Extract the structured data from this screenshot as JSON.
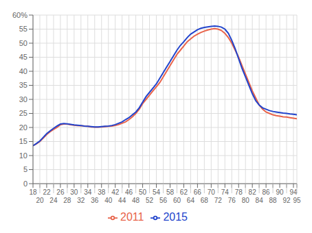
{
  "chart_data": {
    "type": "line",
    "x": [
      18,
      19,
      20,
      21,
      22,
      23,
      24,
      25,
      26,
      27,
      28,
      29,
      30,
      31,
      32,
      33,
      34,
      35,
      36,
      37,
      38,
      39,
      40,
      41,
      42,
      43,
      44,
      45,
      46,
      47,
      48,
      49,
      50,
      51,
      52,
      53,
      54,
      55,
      56,
      57,
      58,
      59,
      60,
      61,
      62,
      63,
      64,
      65,
      66,
      67,
      68,
      69,
      70,
      71,
      72,
      73,
      74,
      75,
      76,
      77,
      78,
      79,
      80,
      81,
      82,
      83,
      84,
      85,
      86,
      87,
      88,
      89,
      90,
      91,
      92,
      93,
      94,
      95
    ],
    "series": [
      {
        "name": "2011",
        "color": "#e8634a",
        "values": [
          13.5,
          14.2,
          15.0,
          16.2,
          17.5,
          18.5,
          19.3,
          20.0,
          21.0,
          21.2,
          21.2,
          21.0,
          20.8,
          20.7,
          20.6,
          20.5,
          20.4,
          20.2,
          20.1,
          20.1,
          20.2,
          20.3,
          20.4,
          20.5,
          20.7,
          21.0,
          21.5,
          22.0,
          22.8,
          23.8,
          25.0,
          26.5,
          28.5,
          30.0,
          31.5,
          33.0,
          34.5,
          36.0,
          38.0,
          40.0,
          42.0,
          44.0,
          46.0,
          47.5,
          49.0,
          50.5,
          51.5,
          52.5,
          53.2,
          53.8,
          54.3,
          54.7,
          55.0,
          55.2,
          55.0,
          54.5,
          53.5,
          52.0,
          50.0,
          47.5,
          45.0,
          42.0,
          39.0,
          36.0,
          33.0,
          30.5,
          28.0,
          26.5,
          25.5,
          25.0,
          24.5,
          24.2,
          24.0,
          23.8,
          23.7,
          23.5,
          23.3,
          23.1
        ]
      },
      {
        "name": "2015",
        "color": "#2244cc",
        "values": [
          13.5,
          14.3,
          15.2,
          16.5,
          17.8,
          18.8,
          19.7,
          20.5,
          21.2,
          21.4,
          21.3,
          21.1,
          20.9,
          20.8,
          20.7,
          20.5,
          20.4,
          20.3,
          20.2,
          20.2,
          20.3,
          20.4,
          20.5,
          20.7,
          21.0,
          21.5,
          22.0,
          22.8,
          23.5,
          24.5,
          25.5,
          27.0,
          29.0,
          31.0,
          32.5,
          34.0,
          35.5,
          37.5,
          39.5,
          41.5,
          43.5,
          45.5,
          47.5,
          49.2,
          50.5,
          52.0,
          53.2,
          54.0,
          54.8,
          55.3,
          55.6,
          55.8,
          56.0,
          56.1,
          56.0,
          55.7,
          55.0,
          53.5,
          51.0,
          48.0,
          44.5,
          41.0,
          38.0,
          35.0,
          32.0,
          29.5,
          28.0,
          27.0,
          26.5,
          26.0,
          25.7,
          25.5,
          25.3,
          25.1,
          25.0,
          24.8,
          24.7,
          24.5
        ]
      }
    ],
    "xlim": [
      18,
      95
    ],
    "xticks": [
      18,
      20,
      22,
      24,
      26,
      28,
      30,
      32,
      34,
      36,
      38,
      40,
      42,
      44,
      46,
      48,
      50,
      52,
      54,
      56,
      58,
      60,
      62,
      64,
      66,
      68,
      70,
      72,
      74,
      76,
      78,
      80,
      82,
      84,
      86,
      88,
      90,
      92,
      94,
      95
    ],
    "ylim": [
      0,
      60
    ],
    "yticks": [
      0,
      5,
      10,
      15,
      20,
      25,
      30,
      35,
      40,
      45,
      50,
      55,
      {
        "value": 60,
        "label": "60%"
      }
    ],
    "grid": true,
    "legend": "bottom"
  }
}
